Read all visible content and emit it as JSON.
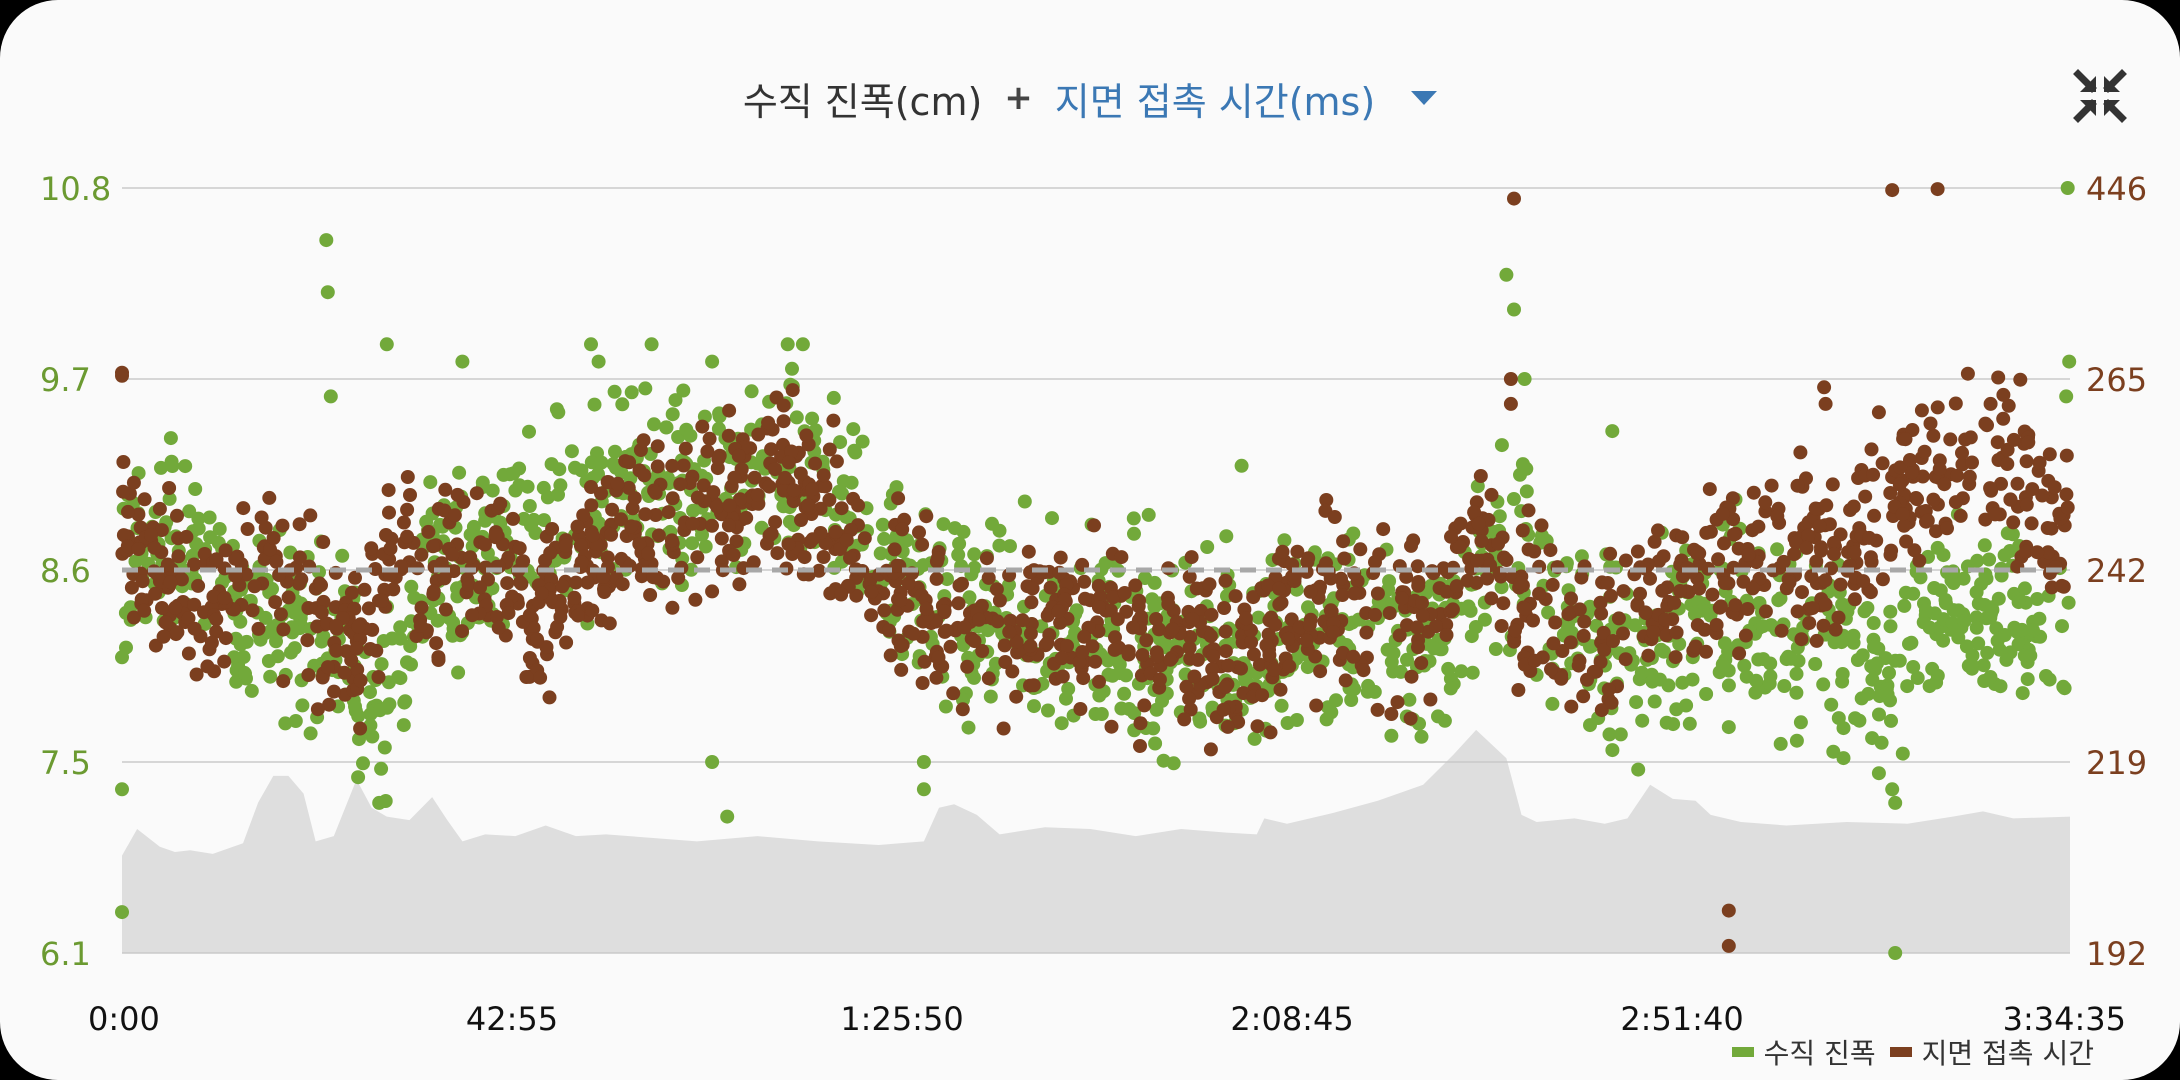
{
  "header": {
    "primary_metric": "수직 진폭(cm)",
    "plus": "+",
    "secondary_metric": "지면 접촉 시간(ms)",
    "dropdown_icon": "caret-down-icon",
    "collapse_icon": "collapse-arrows-icon"
  },
  "colors": {
    "vertical_oscillation": "#72a93a",
    "ground_contact": "#7b3f1f",
    "elevation": "#dedede",
    "average_line": "#a8a8a8",
    "grid": "#c9c9c9",
    "left_axis_text": "#6b9a31",
    "right_axis_text": "#7b3f1f",
    "secondary_title": "#3b78b4"
  },
  "chart_data": {
    "type": "scatter",
    "x_ticks": [
      "0:00",
      "42:55",
      "1:25:50",
      "2:08:45",
      "2:51:40",
      "3:34:35"
    ],
    "x_range_seconds": [
      0,
      12875
    ],
    "y_left": {
      "ticks": [
        "10.8",
        "9.7",
        "8.6",
        "7.5",
        "6.1"
      ],
      "range": [
        6.1,
        10.8
      ],
      "unit": "cm"
    },
    "y_right": {
      "ticks": [
        "446",
        "265",
        "242",
        "219",
        "192"
      ],
      "unit": "ms"
    },
    "average_line_left_value": 8.6,
    "legend": [
      {
        "name": "수직 진폭",
        "color": "#72a93a"
      },
      {
        "name": "지면 접촉 시간",
        "color": "#7b3f1f"
      }
    ],
    "series": [
      {
        "name": "수직 진폭",
        "color": "#72a93a",
        "trend": [
          [
            0,
            8.6
          ],
          [
            300,
            8.9
          ],
          [
            700,
            8.4
          ],
          [
            1000,
            8.2
          ],
          [
            1300,
            8.3
          ],
          [
            1500,
            8.1
          ],
          [
            1700,
            7.7
          ],
          [
            2000,
            8.5
          ],
          [
            2400,
            8.7
          ],
          [
            2800,
            8.9
          ],
          [
            3300,
            9.0
          ],
          [
            3800,
            9.1
          ],
          [
            4300,
            9.2
          ],
          [
            4700,
            9.0
          ],
          [
            5100,
            8.6
          ],
          [
            5500,
            8.3
          ],
          [
            5900,
            8.3
          ],
          [
            6300,
            8.2
          ],
          [
            6700,
            8.2
          ],
          [
            7100,
            8.2
          ],
          [
            7500,
            8.1
          ],
          [
            7900,
            8.2
          ],
          [
            8300,
            8.2
          ],
          [
            8700,
            8.2
          ],
          [
            9200,
            8.8
          ],
          [
            9600,
            8.2
          ],
          [
            10000,
            8.1
          ],
          [
            10400,
            8.3
          ],
          [
            10800,
            8.4
          ],
          [
            11200,
            8.2
          ],
          [
            11600,
            8.0
          ],
          [
            12000,
            8.4
          ],
          [
            12400,
            8.3
          ],
          [
            12875,
            8.2
          ]
        ],
        "outliers": [
          [
            1350,
            10.5
          ],
          [
            1360,
            10.2
          ],
          [
            1380,
            9.6
          ],
          [
            1700,
            7.2
          ],
          [
            1750,
            9.9
          ],
          [
            2250,
            9.8
          ],
          [
            3100,
            9.9
          ],
          [
            3150,
            9.8
          ],
          [
            3500,
            9.9
          ],
          [
            3900,
            9.8
          ],
          [
            4400,
            9.9
          ],
          [
            4500,
            9.9
          ],
          [
            5300,
            7.3
          ],
          [
            5300,
            7.5
          ],
          [
            4000,
            7.1
          ],
          [
            3900,
            7.5
          ],
          [
            7400,
            9.2
          ],
          [
            9150,
            10.3
          ],
          [
            9200,
            10.1
          ],
          [
            9270,
            9.7
          ],
          [
            9850,
            9.4
          ],
          [
            10620,
            7.7
          ],
          [
            11700,
            7.3
          ],
          [
            11720,
            7.2
          ],
          [
            11720,
            6.1
          ],
          [
            12860,
            10.8
          ],
          [
            12870,
            9.8
          ],
          [
            12850,
            9.6
          ],
          [
            0,
            6.4
          ],
          [
            0,
            7.3
          ],
          [
            0,
            8.1
          ]
        ]
      },
      {
        "name": "지면 접촉 시간",
        "color": "#7b3f1f",
        "trend": [
          [
            0,
            248
          ],
          [
            300,
            240
          ],
          [
            600,
            236
          ],
          [
            900,
            242
          ],
          [
            1200,
            238
          ],
          [
            1500,
            232
          ],
          [
            1800,
            244
          ],
          [
            2100,
            240
          ],
          [
            2400,
            244
          ],
          [
            2700,
            236
          ],
          [
            3100,
            244
          ],
          [
            3500,
            247
          ],
          [
            3900,
            250
          ],
          [
            4300,
            252
          ],
          [
            4700,
            248
          ],
          [
            5100,
            240
          ],
          [
            5500,
            236
          ],
          [
            5900,
            235
          ],
          [
            6300,
            235
          ],
          [
            6700,
            234
          ],
          [
            7100,
            232
          ],
          [
            7500,
            232
          ],
          [
            7900,
            239
          ],
          [
            8300,
            236
          ],
          [
            8700,
            238
          ],
          [
            9000,
            246
          ],
          [
            9300,
            236
          ],
          [
            9700,
            234
          ],
          [
            10100,
            240
          ],
          [
            10500,
            242
          ],
          [
            10900,
            244
          ],
          [
            11300,
            244
          ],
          [
            11700,
            250
          ],
          [
            12000,
            254
          ],
          [
            12300,
            256
          ],
          [
            12600,
            252
          ],
          [
            12875,
            246
          ]
        ],
        "outliers": [
          [
            0,
            271
          ],
          [
            0,
            268
          ],
          [
            9200,
            436
          ],
          [
            11700,
            444
          ],
          [
            12000,
            445
          ],
          [
            12200,
            270
          ],
          [
            12350,
            262
          ],
          [
            10620,
            198
          ],
          [
            10620,
            193
          ],
          [
            11250,
            264
          ],
          [
            11260,
            262
          ],
          [
            9180,
            262
          ],
          [
            9180,
            265
          ],
          [
            2500,
            250
          ],
          [
            3100,
            252
          ]
        ]
      }
    ],
    "elevation_profile": [
      [
        0,
        0.55
      ],
      [
        100,
        0.7
      ],
      [
        250,
        0.6
      ],
      [
        350,
        0.57
      ],
      [
        450,
        0.58
      ],
      [
        600,
        0.56
      ],
      [
        800,
        0.62
      ],
      [
        900,
        0.85
      ],
      [
        1000,
        1.0
      ],
      [
        1100,
        1.0
      ],
      [
        1200,
        0.9
      ],
      [
        1280,
        0.63
      ],
      [
        1400,
        0.66
      ],
      [
        1550,
        0.98
      ],
      [
        1650,
        0.82
      ],
      [
        1750,
        0.77
      ],
      [
        1900,
        0.75
      ],
      [
        2050,
        0.88
      ],
      [
        2150,
        0.75
      ],
      [
        2250,
        0.63
      ],
      [
        2400,
        0.67
      ],
      [
        2600,
        0.66
      ],
      [
        2800,
        0.72
      ],
      [
        3000,
        0.66
      ],
      [
        3200,
        0.67
      ],
      [
        3500,
        0.65
      ],
      [
        3800,
        0.63
      ],
      [
        4200,
        0.66
      ],
      [
        4600,
        0.63
      ],
      [
        5000,
        0.61
      ],
      [
        5300,
        0.63
      ],
      [
        5400,
        0.82
      ],
      [
        5500,
        0.84
      ],
      [
        5650,
        0.78
      ],
      [
        5800,
        0.67
      ],
      [
        6100,
        0.71
      ],
      [
        6400,
        0.7
      ],
      [
        6700,
        0.66
      ],
      [
        7000,
        0.7
      ],
      [
        7300,
        0.68
      ],
      [
        7500,
        0.67
      ],
      [
        7550,
        0.76
      ],
      [
        7700,
        0.73
      ],
      [
        8000,
        0.79
      ],
      [
        8300,
        0.86
      ],
      [
        8600,
        0.95
      ],
      [
        8800,
        1.12
      ],
      [
        8950,
        1.26
      ],
      [
        9150,
        1.1
      ],
      [
        9250,
        0.78
      ],
      [
        9350,
        0.74
      ],
      [
        9600,
        0.76
      ],
      [
        9800,
        0.73
      ],
      [
        9950,
        0.76
      ],
      [
        10100,
        0.95
      ],
      [
        10250,
        0.87
      ],
      [
        10400,
        0.86
      ],
      [
        10500,
        0.78
      ],
      [
        10700,
        0.74
      ],
      [
        11000,
        0.72
      ],
      [
        11400,
        0.74
      ],
      [
        11800,
        0.73
      ],
      [
        12100,
        0.77
      ],
      [
        12300,
        0.8
      ],
      [
        12500,
        0.76
      ],
      [
        12875,
        0.77
      ]
    ]
  }
}
